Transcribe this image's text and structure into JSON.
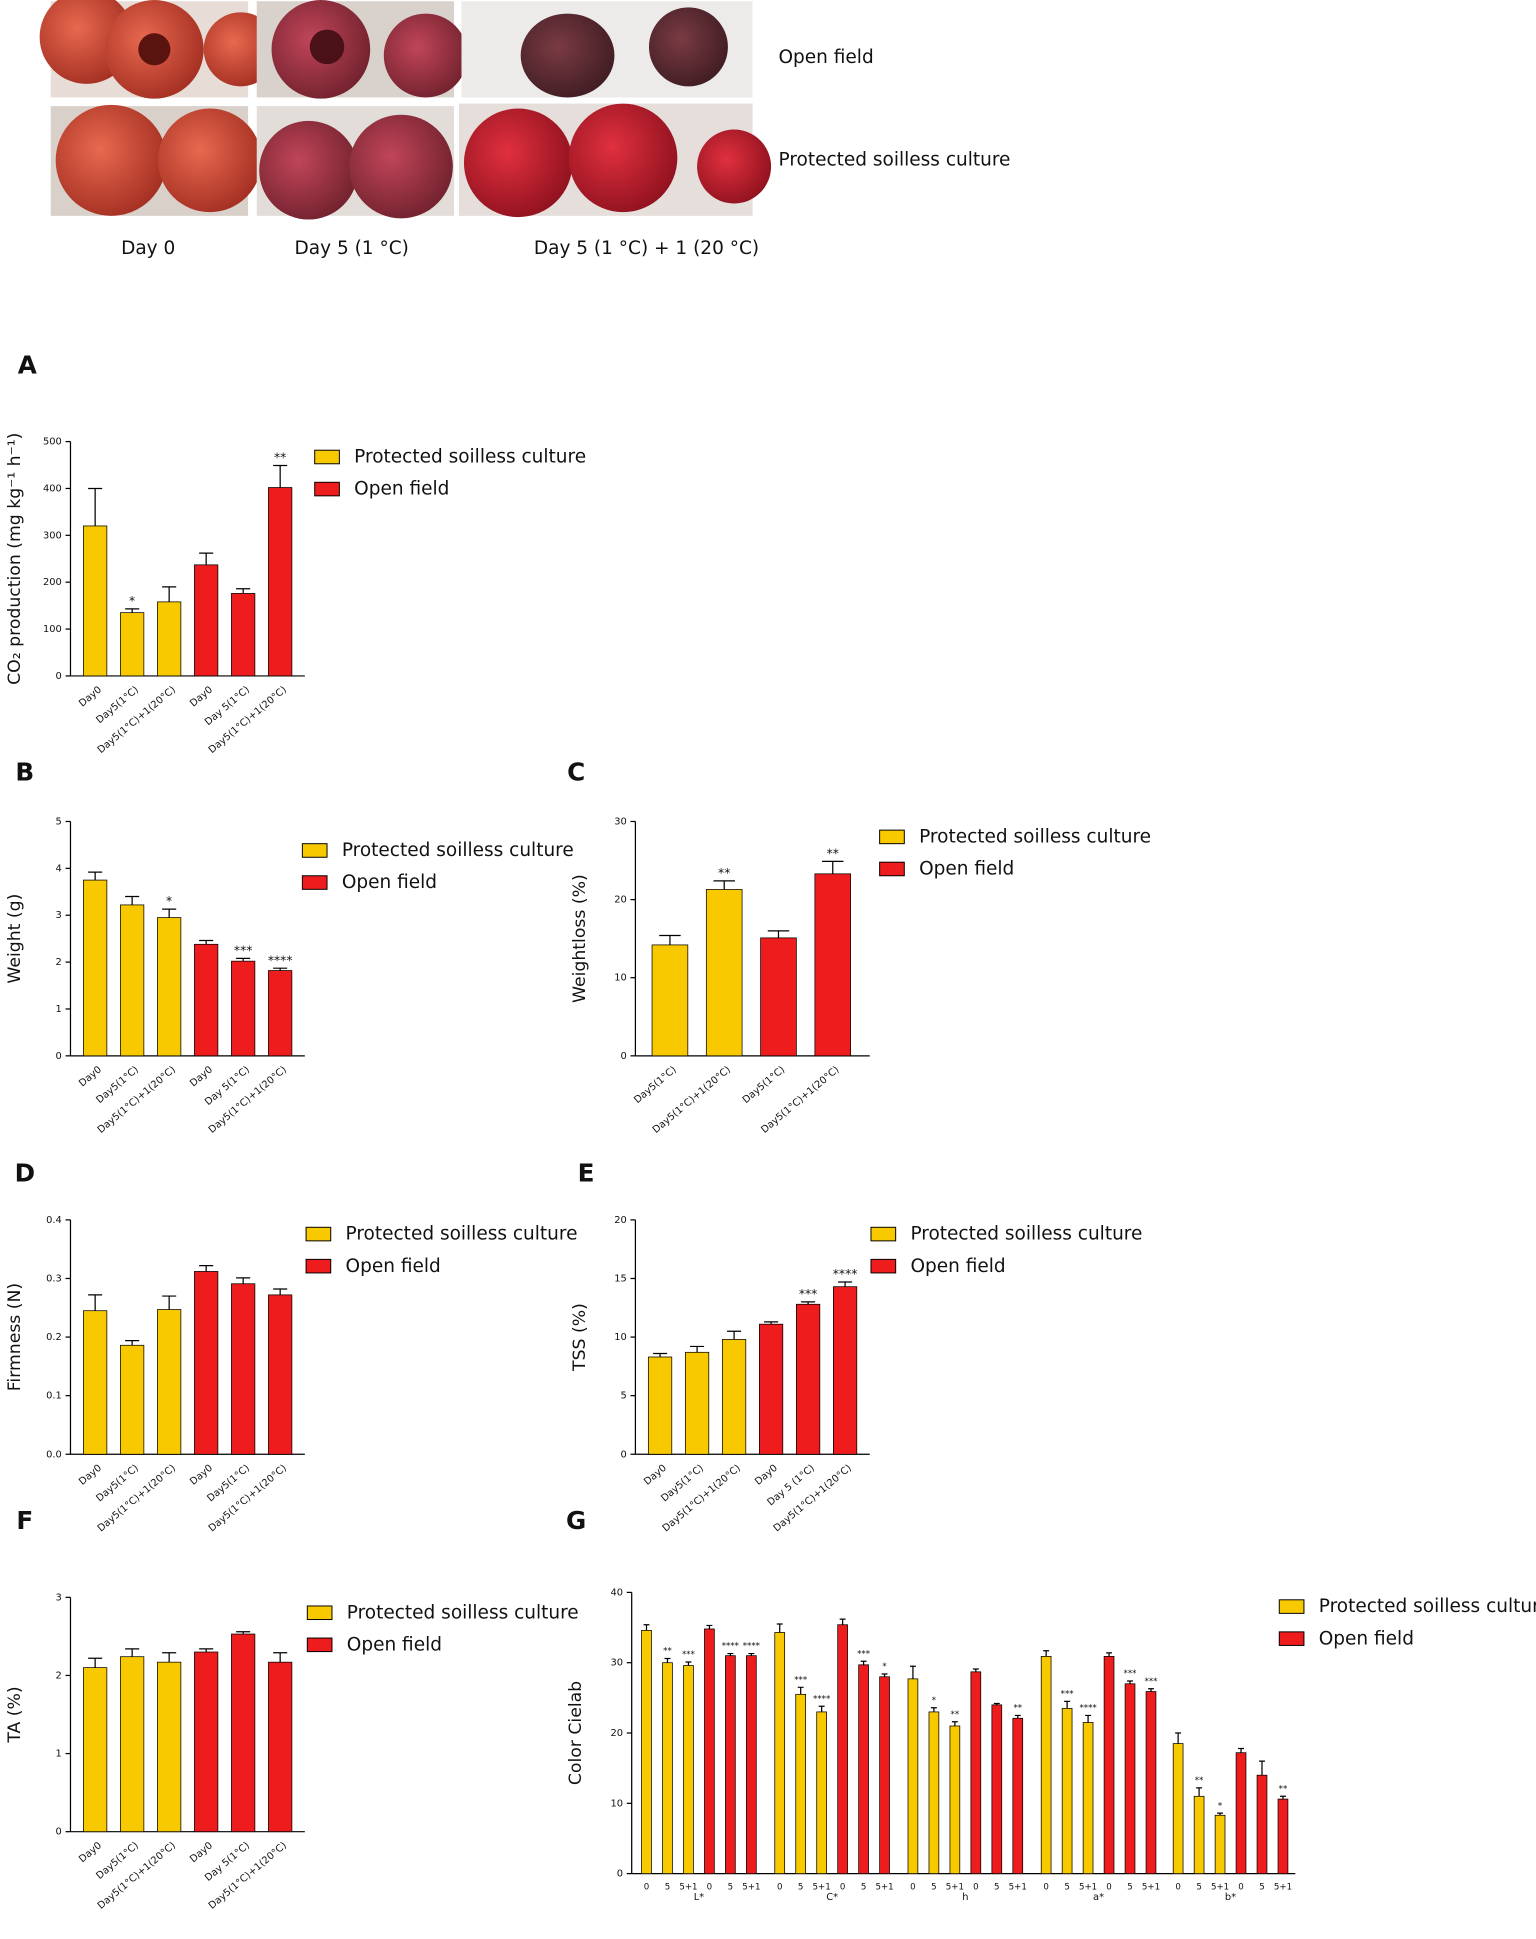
{
  "photo_panel": {
    "row_labels": [
      "Open field",
      "Protected soilless culture"
    ],
    "column_labels": [
      "Day 0",
      "Day 5 (1 °C)",
      "Day 5 (1 °C) + 1 (20 °C)"
    ]
  },
  "chart_data": [
    {
      "type": "bar",
      "panel": "A",
      "ylabel": "CO₂ production (mg kg⁻¹ h⁻¹)",
      "categories": [
        "Day0",
        "Day5(1°C)",
        "Day5(1°C)+1(20°C)",
        "Day0",
        "Day 5(1°C)",
        "Day5(1°C)+1(20°C)"
      ],
      "values": [
        320,
        135,
        158,
        237,
        176,
        402
      ],
      "errors": [
        80,
        8,
        32,
        25,
        10,
        47
      ],
      "significance": [
        null,
        "*",
        null,
        null,
        null,
        "**"
      ],
      "bar_colors": [
        "#f9c900",
        "#f9c900",
        "#f9c900",
        "#ee1c1c",
        "#ee1c1c",
        "#ee1c1c"
      ],
      "ylim": [
        0,
        500
      ],
      "yticks": [
        0,
        100,
        200,
        300,
        400,
        500
      ],
      "legend": [
        {
          "name": "Protected soilless culture",
          "color": "#f9c900"
        },
        {
          "name": "Open field",
          "color": "#ee1c1c"
        }
      ]
    },
    {
      "type": "bar",
      "panel": "B",
      "ylabel": "Weight (g)",
      "categories": [
        "Day0",
        "Day5(1°C)",
        "Day5(1°C)+1(20°C)",
        "Day0",
        "Day 5(1°C)",
        "Day5(1°C)+1(20°C)"
      ],
      "values": [
        3.75,
        3.22,
        2.95,
        2.38,
        2.02,
        1.82
      ],
      "errors": [
        0.17,
        0.18,
        0.18,
        0.08,
        0.06,
        0.05
      ],
      "significance": [
        null,
        null,
        "*",
        null,
        "***",
        "****"
      ],
      "bar_colors": [
        "#f9c900",
        "#f9c900",
        "#f9c900",
        "#ee1c1c",
        "#ee1c1c",
        "#ee1c1c"
      ],
      "ylim": [
        0,
        5
      ],
      "yticks": [
        0,
        1,
        2,
        3,
        4,
        5
      ],
      "legend": [
        {
          "name": "Protected soilless culture",
          "color": "#f9c900"
        },
        {
          "name": "Open field",
          "color": "#ee1c1c"
        }
      ]
    },
    {
      "type": "bar",
      "panel": "C",
      "ylabel": "Weightloss (%)",
      "categories": [
        "Day5(1°C)",
        "Day5(1°C)+1(20°C)",
        "Day5(1°C)",
        "Day5(1°C)+1(20°C)"
      ],
      "values": [
        14.2,
        21.3,
        15.1,
        23.3
      ],
      "errors": [
        1.2,
        1.1,
        0.9,
        1.6
      ],
      "significance": [
        null,
        "**",
        null,
        "**"
      ],
      "bar_colors": [
        "#f9c900",
        "#f9c900",
        "#ee1c1c",
        "#ee1c1c"
      ],
      "ylim": [
        0,
        30
      ],
      "yticks": [
        0,
        10,
        20,
        30
      ],
      "legend": [
        {
          "name": "Protected soilless culture",
          "color": "#f9c900"
        },
        {
          "name": "Open field",
          "color": "#ee1c1c"
        }
      ]
    },
    {
      "type": "bar",
      "panel": "D",
      "ylabel": "Firmness (N)",
      "categories": [
        "Day0",
        "Day5(1°C)",
        "Day5(1°C)+1(20°C)",
        "Day0",
        "Day5(1°C)",
        "Day5(1°C)+1(20°C)"
      ],
      "values": [
        0.245,
        0.186,
        0.247,
        0.312,
        0.291,
        0.272
      ],
      "errors": [
        0.027,
        0.008,
        0.023,
        0.01,
        0.01,
        0.01
      ],
      "significance": [
        null,
        null,
        null,
        null,
        null,
        null
      ],
      "bar_colors": [
        "#f9c900",
        "#f9c900",
        "#f9c900",
        "#ee1c1c",
        "#ee1c1c",
        "#ee1c1c"
      ],
      "ylim": [
        0,
        0.4
      ],
      "yticks": [
        {
          "value": 0,
          "label": "0.0"
        },
        0.1,
        0.2,
        0.3,
        0.4
      ],
      "legend": [
        {
          "name": "Protected soilless culture",
          "color": "#f9c900"
        },
        {
          "name": "Open field",
          "color": "#ee1c1c"
        }
      ]
    },
    {
      "type": "bar",
      "panel": "E",
      "ylabel": "TSS (%)",
      "categories": [
        "Day0",
        "Day5(1°C)",
        "Day5(1°C)+1(20°C)",
        "Day0",
        "Day 5 (1°C)",
        "Day5(1°C)+1(20°C)"
      ],
      "values": [
        8.3,
        8.7,
        9.8,
        11.1,
        12.8,
        14.3
      ],
      "errors": [
        0.3,
        0.5,
        0.7,
        0.2,
        0.2,
        0.4
      ],
      "significance": [
        null,
        null,
        null,
        null,
        "***",
        "****"
      ],
      "bar_colors": [
        "#f9c900",
        "#f9c900",
        "#f9c900",
        "#ee1c1c",
        "#ee1c1c",
        "#ee1c1c"
      ],
      "ylim": [
        0,
        20
      ],
      "yticks": [
        0,
        5,
        10,
        15,
        20
      ],
      "legend": [
        {
          "name": "Protected soilless culture",
          "color": "#f9c900"
        },
        {
          "name": "Open field",
          "color": "#ee1c1c"
        }
      ]
    },
    {
      "type": "bar",
      "panel": "F",
      "ylabel": "TA (%)",
      "categories": [
        "Day0",
        "Day5(1°C)",
        "Day5(1°C)+1(20°C)",
        "Day0",
        "Day 5(1°C)",
        "Day5(1°C)+1(20°C)"
      ],
      "values": [
        2.1,
        2.24,
        2.17,
        2.3,
        2.53,
        2.17
      ],
      "errors": [
        0.12,
        0.1,
        0.12,
        0.04,
        0.03,
        0.12
      ],
      "significance": [
        null,
        null,
        null,
        null,
        null,
        null
      ],
      "bar_colors": [
        "#f9c900",
        "#f9c900",
        "#f9c900",
        "#ee1c1c",
        "#ee1c1c",
        "#ee1c1c"
      ],
      "ylim": [
        0,
        3
      ],
      "yticks": [
        0,
        1,
        2,
        3
      ],
      "legend": [
        {
          "name": "Protected soilless culture",
          "color": "#f9c900"
        },
        {
          "name": "Open field",
          "color": "#ee1c1c"
        }
      ]
    },
    {
      "type": "grouped_bar",
      "panel": "G",
      "ylabel": "Color Cielab",
      "bar_colors": [
        "#f9c900",
        "#f9c900",
        "#f9c900",
        "#ee1c1c",
        "#ee1c1c",
        "#ee1c1c"
      ],
      "ylim": [
        0,
        40
      ],
      "yticks": [
        0,
        10,
        20,
        30,
        40
      ],
      "legend": [
        {
          "name": "Protected soilless culture",
          "color": "#f9c900"
        },
        {
          "name": "Open field",
          "color": "#ee1c1c"
        }
      ],
      "groups": [
        {
          "name": "L*",
          "categories": [
            "0",
            "5",
            "5+1",
            "0",
            "5",
            "5+1"
          ],
          "values": [
            34.6,
            30.0,
            29.6,
            34.8,
            31.0,
            31.0
          ],
          "errors": [
            0.8,
            0.6,
            0.5,
            0.5,
            0.3,
            0.3
          ],
          "significance": [
            null,
            "**",
            "***",
            null,
            "****",
            "****"
          ]
        },
        {
          "name": "C*",
          "categories": [
            "0",
            "5",
            "5+1",
            "0",
            "5",
            "5+1"
          ],
          "values": [
            34.3,
            25.5,
            23.0,
            35.4,
            29.7,
            28.0
          ],
          "errors": [
            1.2,
            1.0,
            0.8,
            0.8,
            0.5,
            0.4
          ],
          "significance": [
            null,
            "***",
            "****",
            null,
            "***",
            "*"
          ]
        },
        {
          "name": "h",
          "categories": [
            "0",
            "5",
            "5+1",
            "0",
            "5",
            "5+1"
          ],
          "values": [
            27.7,
            23.0,
            21.0,
            28.7,
            24.0,
            22.1
          ],
          "errors": [
            1.8,
            0.6,
            0.6,
            0.4,
            0.2,
            0.4
          ],
          "significance": [
            null,
            "*",
            "**",
            null,
            null,
            "**"
          ]
        },
        {
          "name": "a*",
          "categories": [
            "0",
            "5",
            "5+1",
            "0",
            "5",
            "5+1"
          ],
          "values": [
            30.9,
            23.5,
            21.5,
            30.9,
            27.0,
            25.9
          ],
          "errors": [
            0.8,
            1.0,
            1.0,
            0.5,
            0.4,
            0.4
          ],
          "significance": [
            null,
            "***",
            "****",
            null,
            "***",
            "***"
          ]
        },
        {
          "name": "b*",
          "categories": [
            "0",
            "5",
            "5+1",
            "0",
            "5",
            "5+1"
          ],
          "values": [
            18.5,
            11.0,
            8.3,
            17.2,
            14.0,
            10.6
          ],
          "errors": [
            1.5,
            1.2,
            0.3,
            0.6,
            2.0,
            0.4
          ],
          "significance": [
            null,
            "**",
            "*",
            null,
            null,
            "**"
          ]
        }
      ]
    }
  ]
}
